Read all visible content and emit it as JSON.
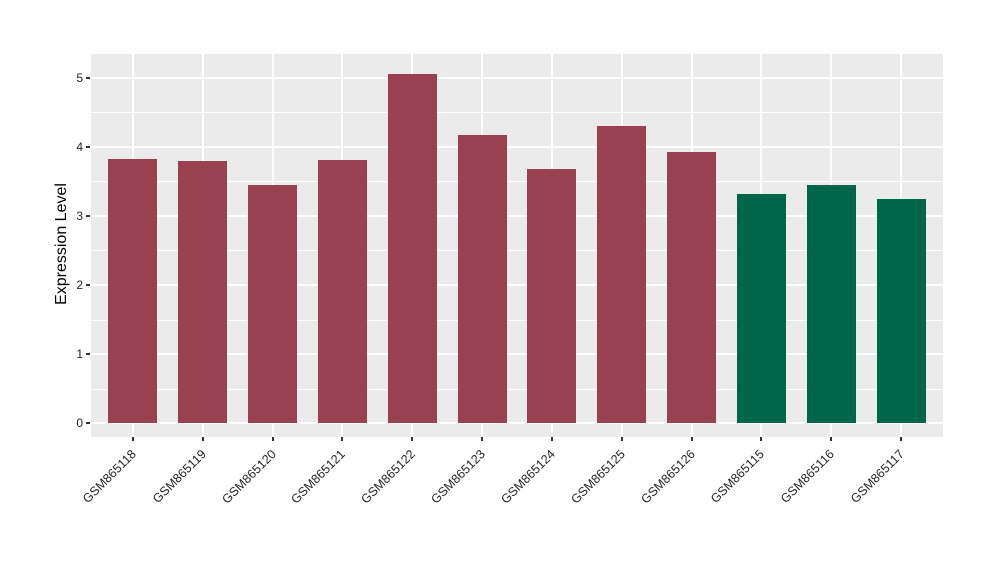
{
  "chart_data": {
    "type": "bar",
    "title": "",
    "xlabel": "",
    "ylabel": "Expression Level",
    "categories": [
      "GSM865118",
      "GSM865119",
      "GSM865120",
      "GSM865121",
      "GSM865122",
      "GSM865123",
      "GSM865124",
      "GSM865125",
      "GSM865126",
      "GSM865115",
      "GSM865116",
      "GSM865117"
    ],
    "values": [
      3.82,
      3.79,
      3.44,
      3.81,
      5.05,
      4.17,
      3.68,
      4.3,
      3.92,
      3.31,
      3.45,
      3.24
    ],
    "bar_colors": [
      "#9a4151",
      "#9a4151",
      "#9a4151",
      "#9a4151",
      "#9a4151",
      "#9a4151",
      "#9a4151",
      "#9a4151",
      "#9a4151",
      "#006649",
      "#006649",
      "#006649"
    ],
    "group_colors": {
      "GSM865118-GSM865126": "#9a4151",
      "GSM865115-GSM865117": "#006649"
    },
    "yticks": [
      0,
      1,
      2,
      3,
      4,
      5
    ],
    "yticks_minor": [
      0.5,
      1.5,
      2.5,
      3.5,
      4.5
    ],
    "ylim": [
      0,
      5.05
    ],
    "grid": true,
    "legend": false,
    "panel_bg": "#ebebeb",
    "grid_color": "#ffffff",
    "x_label_angle": 45
  }
}
